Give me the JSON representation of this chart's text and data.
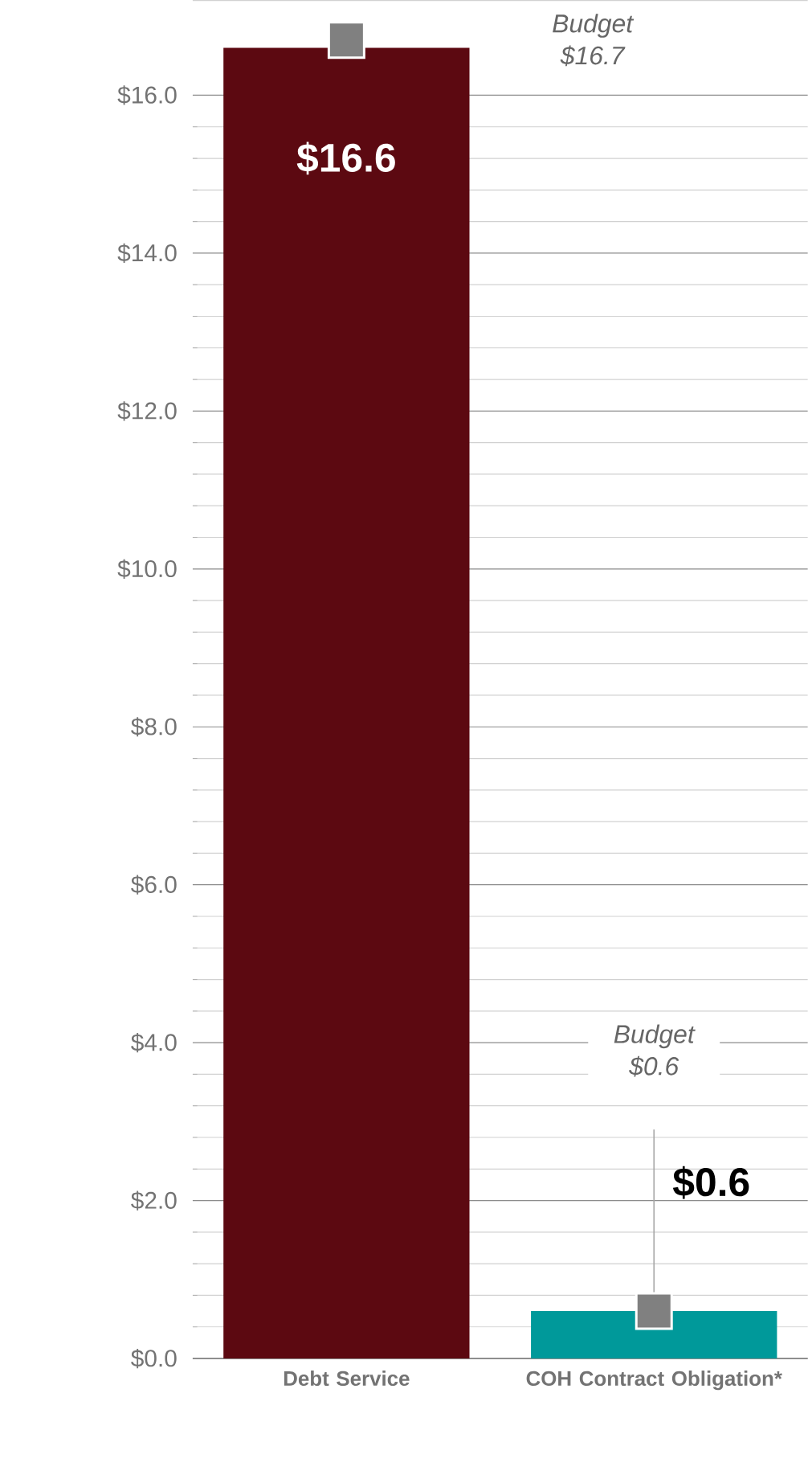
{
  "chart_data": {
    "type": "bar",
    "categories": [
      "Debt Service",
      "COH Contract Obligation*"
    ],
    "series": [
      {
        "values": [
          16.6,
          0.6
        ],
        "colors": [
          "#5c0911",
          "#00999a"
        ],
        "value_labels": [
          "$16.6",
          "$0.6"
        ]
      },
      {
        "type": "scatter",
        "marker": "square",
        "color": "#808080",
        "values": [
          16.7,
          0.6
        ]
      }
    ],
    "annotations": [
      "Budget $16.7",
      "Budget $0.6"
    ],
    "ylim": [
      0,
      17.2
    ],
    "yticks": [
      {
        "value": 0,
        "label": "$0.0"
      },
      {
        "value": 2,
        "label": "$2.0"
      },
      {
        "value": 4,
        "label": "$4.0"
      },
      {
        "value": 6,
        "label": "$6.0"
      },
      {
        "value": 8,
        "label": "$8.0"
      },
      {
        "value": 10,
        "label": "$10.0"
      },
      {
        "value": 12,
        "label": "$12.0"
      },
      {
        "value": 14,
        "label": "$14.0"
      },
      {
        "value": 16,
        "label": "$16.0"
      }
    ],
    "grid": "y"
  }
}
